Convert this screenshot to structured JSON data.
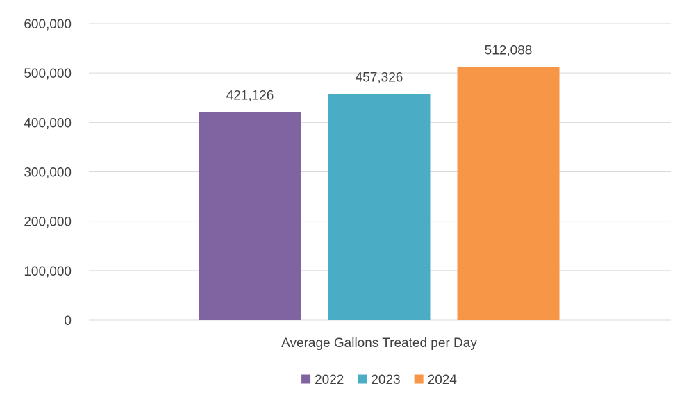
{
  "chart_data": {
    "type": "bar",
    "categories": [
      "Average Gallons Treated per Day"
    ],
    "series": [
      {
        "name": "2022",
        "values": [
          421126
        ],
        "label": "421,126",
        "color": "#8064a2"
      },
      {
        "name": "2023",
        "values": [
          457326
        ],
        "label": "457,326",
        "color": "#4bacc6"
      },
      {
        "name": "2024",
        "values": [
          512088
        ],
        "label": "512,088",
        "color": "#f79646"
      }
    ],
    "y_ticks": [
      {
        "value": 0,
        "label": "0"
      },
      {
        "value": 100000,
        "label": "100,000"
      },
      {
        "value": 200000,
        "label": "200,000"
      },
      {
        "value": 300000,
        "label": "300,000"
      },
      {
        "value": 400000,
        "label": "400,000"
      },
      {
        "value": 500000,
        "label": "500,000"
      },
      {
        "value": 600000,
        "label": "600,000"
      }
    ],
    "ylim": [
      0,
      600000
    ],
    "title": "",
    "xlabel": "",
    "ylabel": "",
    "grid": true,
    "legend": "bottom"
  }
}
